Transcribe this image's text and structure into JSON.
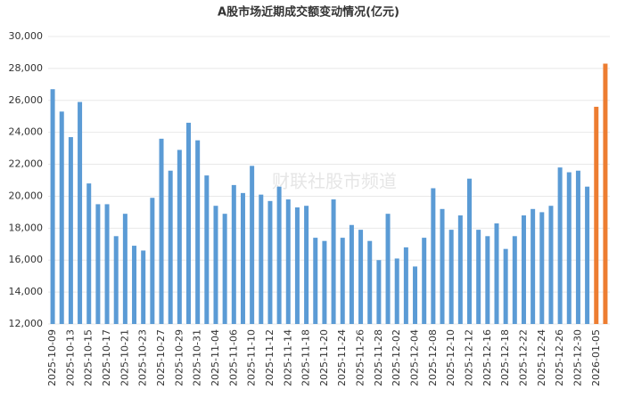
{
  "chart_data": {
    "type": "bar",
    "title": "A股市场近期成交额变动情况(亿元)",
    "watermark": "财联社股市频道",
    "categories": [
      "2025-10-09",
      null,
      "2025-10-13",
      null,
      "2025-10-15",
      null,
      "2025-10-17",
      null,
      "2025-10-21",
      null,
      "2025-10-23",
      null,
      "2025-10-27",
      null,
      "2025-10-29",
      null,
      "2025-10-31",
      null,
      "2025-11-04",
      null,
      "2025-11-06",
      null,
      "2025-11-10",
      null,
      "2025-11-12",
      null,
      "2025-11-14",
      null,
      "2025-11-18",
      null,
      "2025-11-20",
      null,
      "2025-11-24",
      null,
      "2025-11-26",
      null,
      "2025-11-28",
      null,
      "2025-12-02",
      null,
      "2025-12-04",
      null,
      "2025-12-08",
      null,
      "2025-12-10",
      null,
      "2025-12-12",
      null,
      "2025-12-16",
      null,
      "2025-12-18",
      null,
      "2025-12-22",
      null,
      "2025-12-24",
      null,
      "2025-12-26",
      null,
      "2025-12-30",
      null,
      "2026-01-05",
      null
    ],
    "values": [
      26700,
      25300,
      23700,
      25900,
      20800,
      19500,
      19500,
      17500,
      18900,
      16900,
      16600,
      19900,
      23600,
      21600,
      22900,
      24600,
      23500,
      21300,
      19400,
      18900,
      20700,
      20200,
      21900,
      20100,
      19700,
      20600,
      19800,
      19300,
      19400,
      17400,
      17200,
      19800,
      17400,
      18200,
      17900,
      17200,
      16000,
      18900,
      16100,
      16800,
      15600,
      17400,
      20500,
      19200,
      17900,
      18800,
      21100,
      17900,
      17500,
      18300,
      16700,
      17500,
      18800,
      19200,
      19000,
      19400,
      21800,
      21500,
      21600,
      20600,
      25600,
      28300
    ],
    "colors": [
      "#5b9bd5",
      "#5b9bd5",
      "#5b9bd5",
      "#5b9bd5",
      "#5b9bd5",
      "#5b9bd5",
      "#5b9bd5",
      "#5b9bd5",
      "#5b9bd5",
      "#5b9bd5",
      "#5b9bd5",
      "#5b9bd5",
      "#5b9bd5",
      "#5b9bd5",
      "#5b9bd5",
      "#5b9bd5",
      "#5b9bd5",
      "#5b9bd5",
      "#5b9bd5",
      "#5b9bd5",
      "#5b9bd5",
      "#5b9bd5",
      "#5b9bd5",
      "#5b9bd5",
      "#5b9bd5",
      "#5b9bd5",
      "#5b9bd5",
      "#5b9bd5",
      "#5b9bd5",
      "#5b9bd5",
      "#5b9bd5",
      "#5b9bd5",
      "#5b9bd5",
      "#5b9bd5",
      "#5b9bd5",
      "#5b9bd5",
      "#5b9bd5",
      "#5b9bd5",
      "#5b9bd5",
      "#5b9bd5",
      "#5b9bd5",
      "#5b9bd5",
      "#5b9bd5",
      "#5b9bd5",
      "#5b9bd5",
      "#5b9bd5",
      "#5b9bd5",
      "#5b9bd5",
      "#5b9bd5",
      "#5b9bd5",
      "#5b9bd5",
      "#5b9bd5",
      "#5b9bd5",
      "#5b9bd5",
      "#5b9bd5",
      "#5b9bd5",
      "#5b9bd5",
      "#5b9bd5",
      "#5b9bd5",
      "#5b9bd5",
      "#ed7d31",
      "#ed7d31"
    ],
    "ylim": [
      12000,
      30000
    ],
    "yticks": [
      {
        "value": 12000,
        "label": "12,000"
      },
      {
        "value": 14000,
        "label": "14,000"
      },
      {
        "value": 16000,
        "label": "16,000"
      },
      {
        "value": 18000,
        "label": "18,000"
      },
      {
        "value": 20000,
        "label": "20,000"
      },
      {
        "value": 22000,
        "label": "22,000"
      },
      {
        "value": 24000,
        "label": "24,000"
      },
      {
        "value": 26000,
        "label": "26,000"
      },
      {
        "value": 28000,
        "label": "28,000"
      },
      {
        "value": 30000,
        "label": "30,000"
      }
    ],
    "grid": true
  }
}
